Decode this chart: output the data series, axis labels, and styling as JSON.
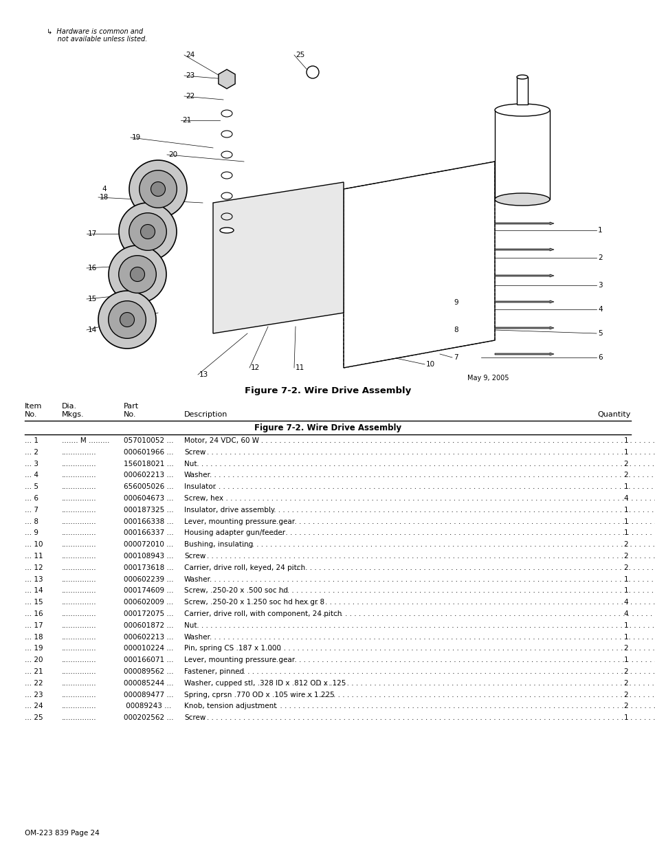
{
  "figure_title": "Figure 7-2. Wire Drive Assembly",
  "date_label": "May 9, 2005",
  "hardware_note_line1": "↳  Hardware is common and",
  "hardware_note_line2": "     not available unless listed.",
  "section_title": "Figure 7-2. Wire Drive Assembly",
  "footer": "OM-223 839 Page 24",
  "rows": [
    {
      "item": "... 1",
      "dia": "....... M .........",
      "part": "057010052 ...",
      "desc": "Motor, 24 VDC, 60 W",
      "dots": true,
      "qty": "1"
    },
    {
      "item": "... 2",
      "dia": "...............",
      "part": "000601966 ...",
      "desc": "Screw",
      "dots": true,
      "qty": "1"
    },
    {
      "item": "... 3",
      "dia": "...............",
      "part": "156018021 ...",
      "desc": "Nut",
      "dots": true,
      "qty": "2"
    },
    {
      "item": "... 4",
      "dia": "...............",
      "part": "000602213 ...",
      "desc": "Washer",
      "dots": true,
      "qty": "2"
    },
    {
      "item": "... 5",
      "dia": "...............",
      "part": "656005026 ...",
      "desc": "Insulator",
      "dots": true,
      "qty": "1"
    },
    {
      "item": "... 6",
      "dia": "...............",
      "part": "000604673 ...",
      "desc": "Screw, hex",
      "dots": true,
      "qty": "4"
    },
    {
      "item": "... 7",
      "dia": "...............",
      "part": "000187325 ...",
      "desc": "Insulator, drive assembly",
      "dots": true,
      "qty": "1"
    },
    {
      "item": "... 8",
      "dia": "...............",
      "part": "000166338 ...",
      "desc": "Lever, mounting pressure gear",
      "dots": true,
      "qty": "1"
    },
    {
      "item": "... 9",
      "dia": "...............",
      "part": "000166337 ...",
      "desc": "Housing adapter gun/feeder",
      "dots": true,
      "qty": "1"
    },
    {
      "item": "... 10",
      "dia": "...............",
      "part": "000072010 ...",
      "desc": "Bushing, insulating",
      "dots": true,
      "qty": "2"
    },
    {
      "item": "... 11",
      "dia": "...............",
      "part": "000108943 ...",
      "desc": "Screw",
      "dots": true,
      "qty": "2"
    },
    {
      "item": "... 12",
      "dia": "...............",
      "part": "000173618 ...",
      "desc": "Carrier, drive roll, keyed, 24 pitch",
      "dots": true,
      "qty": "2"
    },
    {
      "item": "... 13",
      "dia": "...............",
      "part": "000602239 ...",
      "desc": "Washer",
      "dots": true,
      "qty": "1"
    },
    {
      "item": "... 14",
      "dia": "...............",
      "part": "000174609 ...",
      "desc": "Screw, .250-20 x .500 soc hd",
      "dots": true,
      "qty": "1"
    },
    {
      "item": "... 15",
      "dia": "...............",
      "part": "000602009 ...",
      "desc": "Screw, .250-20 x 1.250 soc hd hex gr 8",
      "dots": true,
      "qty": "4"
    },
    {
      "item": "... 16",
      "dia": "...............",
      "part": "000172075 ...",
      "desc": "Carrier, drive roll, with component, 24 pitch",
      "dots": true,
      "qty": "4"
    },
    {
      "item": "... 17",
      "dia": "...............",
      "part": "000601872 ...",
      "desc": "Nut",
      "dots": true,
      "qty": "1"
    },
    {
      "item": "... 18",
      "dia": "...............",
      "part": "000602213 ...",
      "desc": "Washer",
      "dots": true,
      "qty": "1"
    },
    {
      "item": "... 19",
      "dia": "...............",
      "part": "000010224 ...",
      "desc": "Pin, spring CS .187 x 1.000",
      "dots": true,
      "qty": "2"
    },
    {
      "item": "... 20",
      "dia": "...............",
      "part": "000166071 ...",
      "desc": "Lever, mounting pressure gear",
      "dots": true,
      "qty": "1"
    },
    {
      "item": "... 21",
      "dia": "...............",
      "part": "000089562 ...",
      "desc": "Fastener, pinned",
      "dots": true,
      "qty": "2"
    },
    {
      "item": "... 22",
      "dia": "...............",
      "part": "000085244 ...",
      "desc": "Washer, cupped stl, .328 ID x .812 OD x .125",
      "dots": true,
      "qty": "2"
    },
    {
      "item": "... 23",
      "dia": "...............",
      "part": "000089477 ...",
      "desc": "Spring, cprsn .770 OD x .105 wire x 1.225",
      "dots": true,
      "qty": "2"
    },
    {
      "item": "... 24",
      "dia": "...............",
      "part": " 00089243 ...",
      "desc": "Knob, tension adjustment",
      "dots": true,
      "qty": "2"
    },
    {
      "item": "... 25",
      "dia": "...............",
      "part": "000202562 ...",
      "desc": "Screw",
      "dots": true,
      "qty": "1"
    }
  ],
  "bg_color": "#ffffff",
  "text_color": "#000000"
}
